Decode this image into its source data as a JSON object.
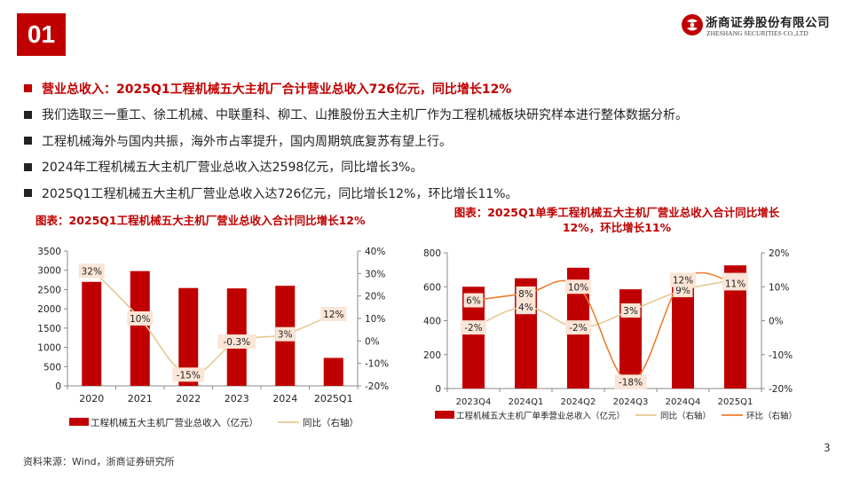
{
  "header": {
    "section_number": "01",
    "logo_text_cn": "浙商证券股份有限公司",
    "logo_text_en": "ZHESHANG SECURITIES CO.,LTD",
    "logo_icon": "zheshang-logo-icon"
  },
  "bullets": [
    "营业总收入：2025Q1工程机械五大主机厂合计营业总收入726亿元，同比增长12%",
    "我们选取三一重工、徐工机械、中联重科、柳工、山推股份五大主机厂作为工程机械板块研究样本进行整体数据分析。",
    "工程机械海外与国内共振，海外市占率提升，国内周期筑底复苏有望上行。",
    "2024年工程机械五大主机厂营业总收入达2598亿元，同比增长3%。",
    "2025Q1工程机械五大主机厂营业总收入达726亿元，同比增长12%，环比增长11%。"
  ],
  "colors": {
    "accent": "#c00000",
    "yoy_line": "#e6c88f",
    "qoq_line": "#ed7d31",
    "label_box": "#fbe5d6"
  },
  "chart_data": [
    {
      "type": "bar",
      "title": "图表：2025Q1工程机械五大主机厂营业总收入合计同比增长12%",
      "categories": [
        "2020",
        "2021",
        "2022",
        "2023",
        "2024",
        "2025Q1"
      ],
      "series": [
        {
          "name": "工程机械五大主机厂营业总收入（亿元）",
          "type": "bar",
          "axis": "left",
          "values": [
            2700,
            2980,
            2540,
            2530,
            2598,
            726
          ]
        },
        {
          "name": "同比（右轴）",
          "type": "line",
          "axis": "right",
          "values": [
            32,
            10,
            -15,
            -0.3,
            3,
            12
          ],
          "labels": [
            "32%",
            "10%",
            "-15%",
            "-0.3%",
            "3%",
            "12%"
          ]
        }
      ],
      "y_left": {
        "min": 0,
        "max": 3500,
        "ticks": [
          0,
          500,
          1000,
          1500,
          2000,
          2500,
          3000,
          3500
        ],
        "tick_labels": [
          "0",
          "500",
          "1000",
          "1500",
          "2000",
          "2500",
          "3000",
          "3500"
        ]
      },
      "y_right": {
        "min": -20,
        "max": 40,
        "ticks": [
          -20,
          -10,
          0,
          10,
          20,
          30,
          40
        ],
        "tick_labels": [
          "-20%",
          "-10%",
          "0%",
          "10%",
          "20%",
          "30%",
          "40%"
        ]
      },
      "legend_position": "bottom"
    },
    {
      "type": "bar",
      "title": "图表：2025Q1单季工程机械五大主机厂营业总收入合计同比增长12%，环比增长11%",
      "categories": [
        "2023Q4",
        "2024Q1",
        "2024Q2",
        "2024Q3",
        "2024Q4",
        "2025Q1"
      ],
      "series": [
        {
          "name": "工程机械五大主机厂单季营业总收入（亿元）",
          "type": "bar",
          "axis": "left",
          "values": [
            600,
            650,
            712,
            585,
            655,
            726
          ]
        },
        {
          "name": "同比（右轴）",
          "type": "line",
          "axis": "right",
          "values": [
            -2,
            4,
            -2,
            3,
            9,
            12
          ],
          "labels": [
            "-2%",
            "4%",
            "-2%",
            "3%",
            "9%",
            "12%"
          ]
        },
        {
          "name": "环比（右轴）",
          "type": "line",
          "axis": "right",
          "values": [
            6,
            8,
            10,
            -18,
            12,
            11
          ],
          "labels": [
            "6%",
            "8%",
            "10%",
            "-18%",
            "12%",
            "11%"
          ]
        }
      ],
      "y_left": {
        "min": 0,
        "max": 800,
        "ticks": [
          0,
          200,
          400,
          600,
          800
        ],
        "tick_labels": [
          "0",
          "200",
          "400",
          "600",
          "800"
        ]
      },
      "y_right": {
        "min": -20,
        "max": 20,
        "ticks": [
          -20,
          -10,
          0,
          10,
          20
        ],
        "tick_labels": [
          "-20%",
          "-10%",
          "0%",
          "10%",
          "20%"
        ]
      },
      "legend_position": "bottom"
    }
  ],
  "footer": {
    "source": "资料来源：Wind，浙商证券研究所",
    "page_number": "3"
  }
}
